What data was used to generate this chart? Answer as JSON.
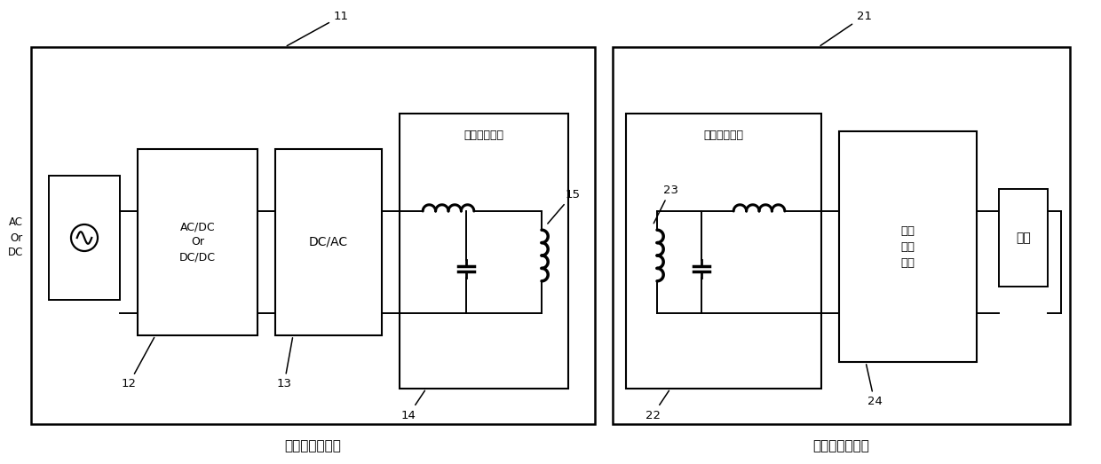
{
  "bg_color": "#ffffff",
  "line_color": "#000000",
  "fig_width": 12.4,
  "fig_height": 5.23,
  "dpi": 100,
  "labels": {
    "ac_or_dc": "AC\nOr\nDC",
    "acdc_dcdc": "AC/DC\nOr\nDC/DC",
    "dcac": "DC/AC",
    "res1_title": "谐振网络单元",
    "res2_title": "谐振网络单元",
    "rectifier": "整流\n滤波\n单元",
    "load": "负载",
    "transmitter_label": "无线充电发射器",
    "receiver_label": "无线充电接收器",
    "n11": "11",
    "n12": "12",
    "n13": "13",
    "n14": "14",
    "n15": "15",
    "n21": "21",
    "n22": "22",
    "n23": "23",
    "n24": "24"
  }
}
